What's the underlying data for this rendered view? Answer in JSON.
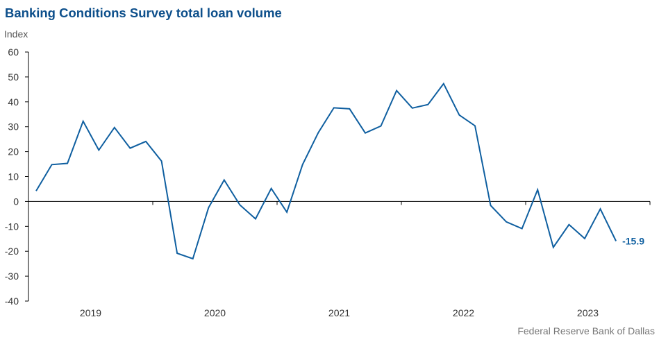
{
  "title": "Banking Conditions Survey total loan volume",
  "source": "Federal Reserve Bank of Dallas",
  "colors": {
    "title": "#0d4f8b",
    "line": "#0f5fa0",
    "axis": "#000000"
  },
  "chart_data": {
    "type": "line",
    "title": "Banking Conditions Survey total loan volume",
    "ylabel": "Index",
    "xlabel": "",
    "ylim": [
      -40,
      60
    ],
    "yticks": [
      60,
      50,
      40,
      30,
      20,
      10,
      0,
      -10,
      -20,
      -30,
      -40
    ],
    "x_year_labels": [
      "2019",
      "2020",
      "2021",
      "2022",
      "2023"
    ],
    "grid": false,
    "legend": "none",
    "series": [
      {
        "values": [
          4.2,
          14.8,
          15.3,
          32.2,
          20.6,
          29.7,
          21.4,
          24.1,
          16.2,
          -20.8,
          -23.0,
          -2.5,
          8.6,
          -1.4,
          -7.0,
          5.2,
          -4.3,
          14.8,
          27.6,
          37.6,
          37.2,
          27.5,
          30.3,
          44.5,
          37.5,
          38.9,
          47.3,
          34.7,
          30.4,
          -1.6,
          -8.2,
          -10.9,
          4.7,
          -18.4,
          -9.3,
          -14.9,
          -3.0,
          -15.9
        ]
      }
    ],
    "end_label": "-15.9"
  }
}
